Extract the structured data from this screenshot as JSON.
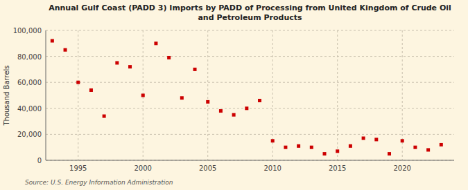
{
  "chart_data": {
    "type": "scatter",
    "title": "Annual Gulf Coast (PADD 3) Imports by PADD of Processing from United Kingdom of Crude Oil\nand Petroleum Products",
    "y_label": "Thousand Barrels",
    "annotations": [
      "Source: U.S. Energy Information Administration"
    ],
    "color": "#cc0000",
    "marker": "square",
    "grid": true,
    "x": [
      1993,
      1994,
      1995,
      1996,
      1997,
      1998,
      1999,
      2000,
      2001,
      2002,
      2003,
      2004,
      2005,
      2006,
      2007,
      2008,
      2009,
      2010,
      2011,
      2012,
      2013,
      2014,
      2015,
      2016,
      2017,
      2018,
      2019,
      2020,
      2021,
      2022,
      2023
    ],
    "values": [
      92000,
      85000,
      60000,
      54000,
      34000,
      75000,
      72000,
      50000,
      90000,
      79000,
      48000,
      70000,
      45000,
      38000,
      35000,
      40000,
      46000,
      15000,
      10000,
      11000,
      10000,
      5000,
      7000,
      11000,
      17000,
      16000,
      5000,
      15000,
      10000,
      8000,
      12000
    ],
    "xlim": [
      1992.5,
      2024
    ],
    "ylim": [
      0,
      100000
    ],
    "xticks": [
      1995,
      2000,
      2005,
      2010,
      2015,
      2020
    ],
    "yticks": [
      0,
      {
        "value": 20000,
        "label": "20,000"
      },
      {
        "value": 40000,
        "label": "40,000"
      },
      {
        "value": 60000,
        "label": "60,000"
      },
      {
        "value": 80000,
        "label": "80,000"
      },
      {
        "value": 100000,
        "label": "100,000"
      }
    ]
  }
}
